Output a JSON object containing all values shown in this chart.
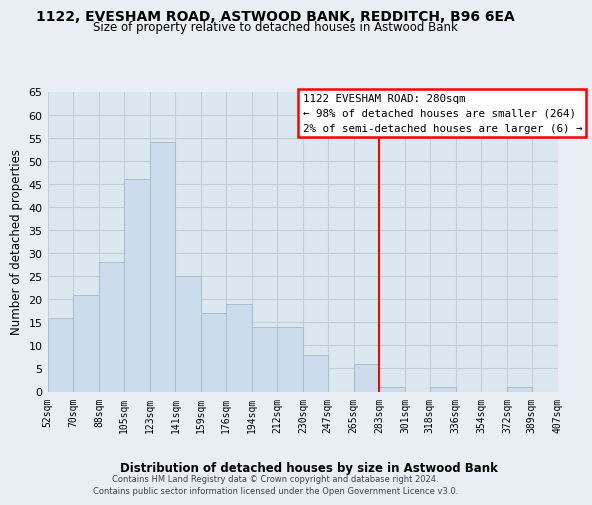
{
  "title": "1122, EVESHAM ROAD, ASTWOOD BANK, REDDITCH, B96 6EA",
  "subtitle": "Size of property relative to detached houses in Astwood Bank",
  "xlabel": "Distribution of detached houses by size in Astwood Bank",
  "ylabel": "Number of detached properties",
  "bin_edges": [
    52,
    70,
    88,
    105,
    123,
    141,
    159,
    176,
    194,
    212,
    230,
    247,
    265,
    283,
    301,
    318,
    336,
    354,
    372,
    389,
    407
  ],
  "bin_labels": [
    "52sqm",
    "70sqm",
    "88sqm",
    "105sqm",
    "123sqm",
    "141sqm",
    "159sqm",
    "176sqm",
    "194sqm",
    "212sqm",
    "230sqm",
    "247sqm",
    "265sqm",
    "283sqm",
    "301sqm",
    "318sqm",
    "336sqm",
    "354sqm",
    "372sqm",
    "389sqm",
    "407sqm"
  ],
  "counts": [
    16,
    21,
    28,
    46,
    54,
    25,
    17,
    19,
    14,
    14,
    8,
    0,
    6,
    1,
    0,
    1,
    0,
    0,
    1,
    0
  ],
  "bar_color": "#ccdcec",
  "bar_edge_color": "#a8becc",
  "vline_x": 283,
  "vline_color": "red",
  "ylim": [
    0,
    65
  ],
  "yticks": [
    0,
    5,
    10,
    15,
    20,
    25,
    30,
    35,
    40,
    45,
    50,
    55,
    60,
    65
  ],
  "annotation_title": "1122 EVESHAM ROAD: 280sqm",
  "annotation_line1": "← 98% of detached houses are smaller (264)",
  "annotation_line2": "2% of semi-detached houses are larger (6) →",
  "footer_line1": "Contains HM Land Registry data © Crown copyright and database right 2024.",
  "footer_line2": "Contains public sector information licensed under the Open Government Licence v3.0.",
  "background_color": "#e8eef4",
  "plot_bg_color": "#dce8f0",
  "grid_color": "#c0cfd8"
}
